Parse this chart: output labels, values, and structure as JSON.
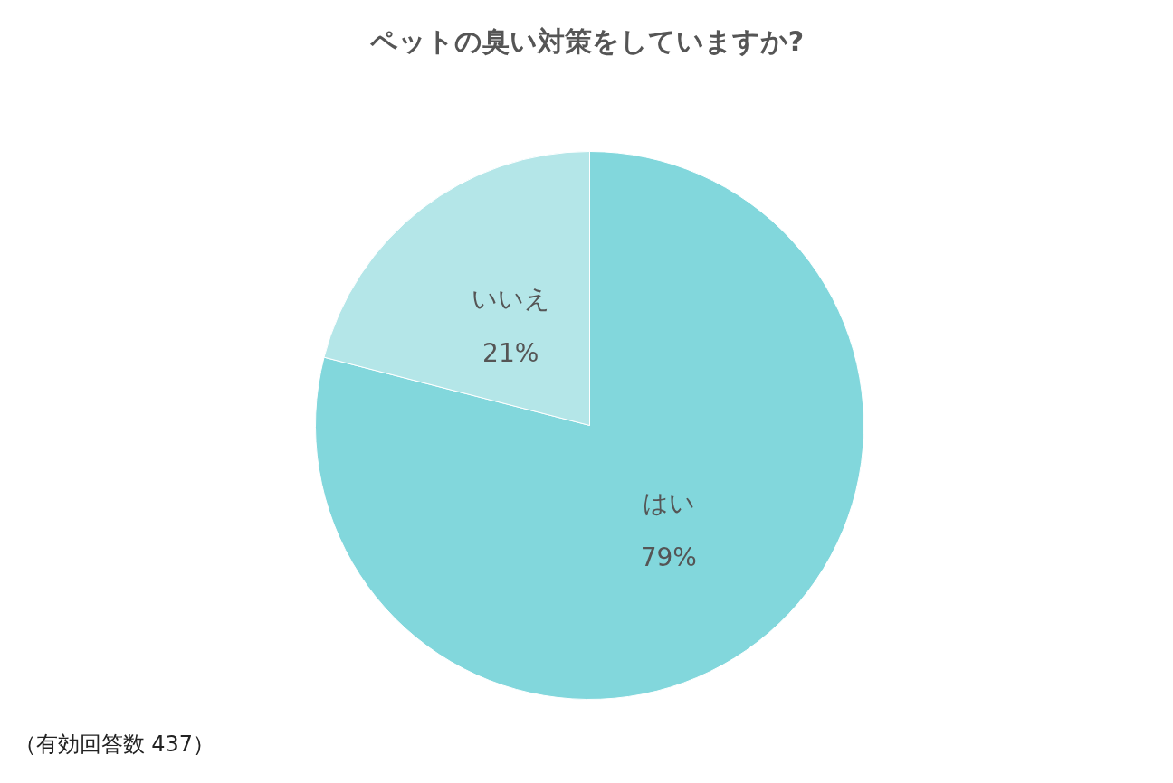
{
  "chart_data": {
    "type": "pie",
    "title": "ペットの臭い対策をしていますか?",
    "categories": [
      "はい",
      "いいえ"
    ],
    "values": [
      79,
      21
    ],
    "colors": [
      "#82d7dc",
      "#b4e6e8"
    ],
    "data_labels": true,
    "value_labels": [
      "79%",
      "21%"
    ],
    "annotations": [
      "（有効回答数 437）"
    ]
  }
}
